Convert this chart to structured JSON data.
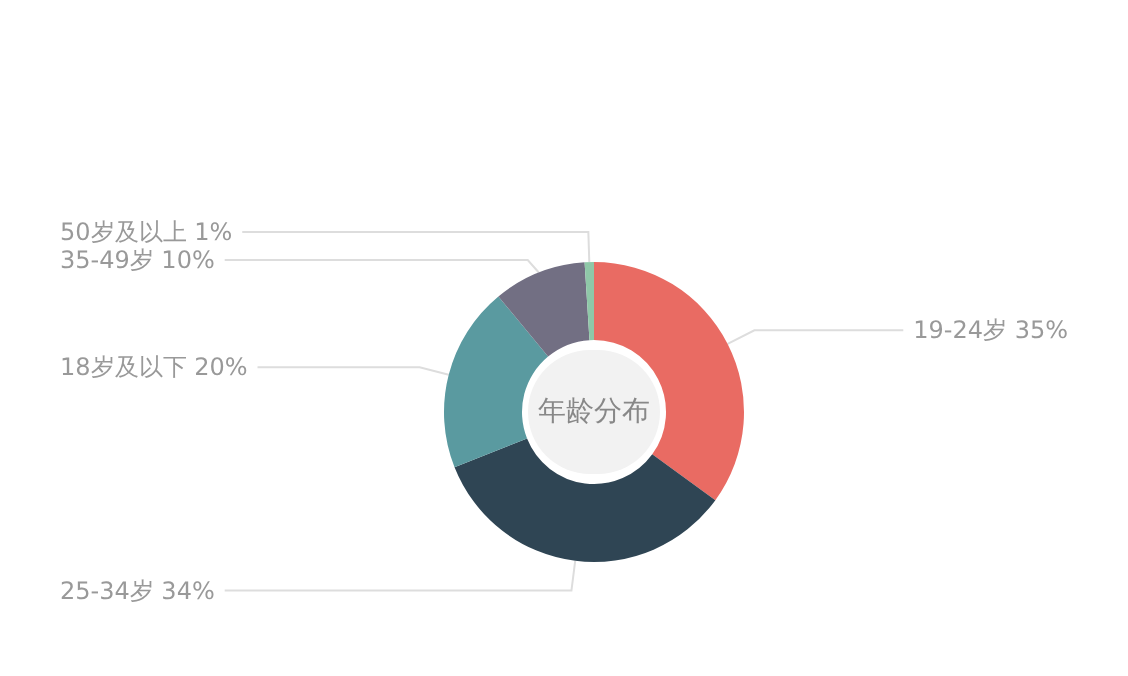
{
  "chart_data": {
    "type": "donut",
    "title": "年龄分布",
    "categories": [
      "19-24岁",
      "25-34岁",
      "18岁及以下",
      "35-49岁",
      "50岁及以上"
    ],
    "values": [
      35,
      34,
      20,
      10,
      1
    ],
    "value_labels": [
      "35%",
      "34%",
      "20%",
      "10%",
      "1%"
    ],
    "colors": [
      "#e96b63",
      "#2f4554",
      "#5a9aa0",
      "#726f83",
      "#8fc8a8"
    ],
    "legend": false
  }
}
